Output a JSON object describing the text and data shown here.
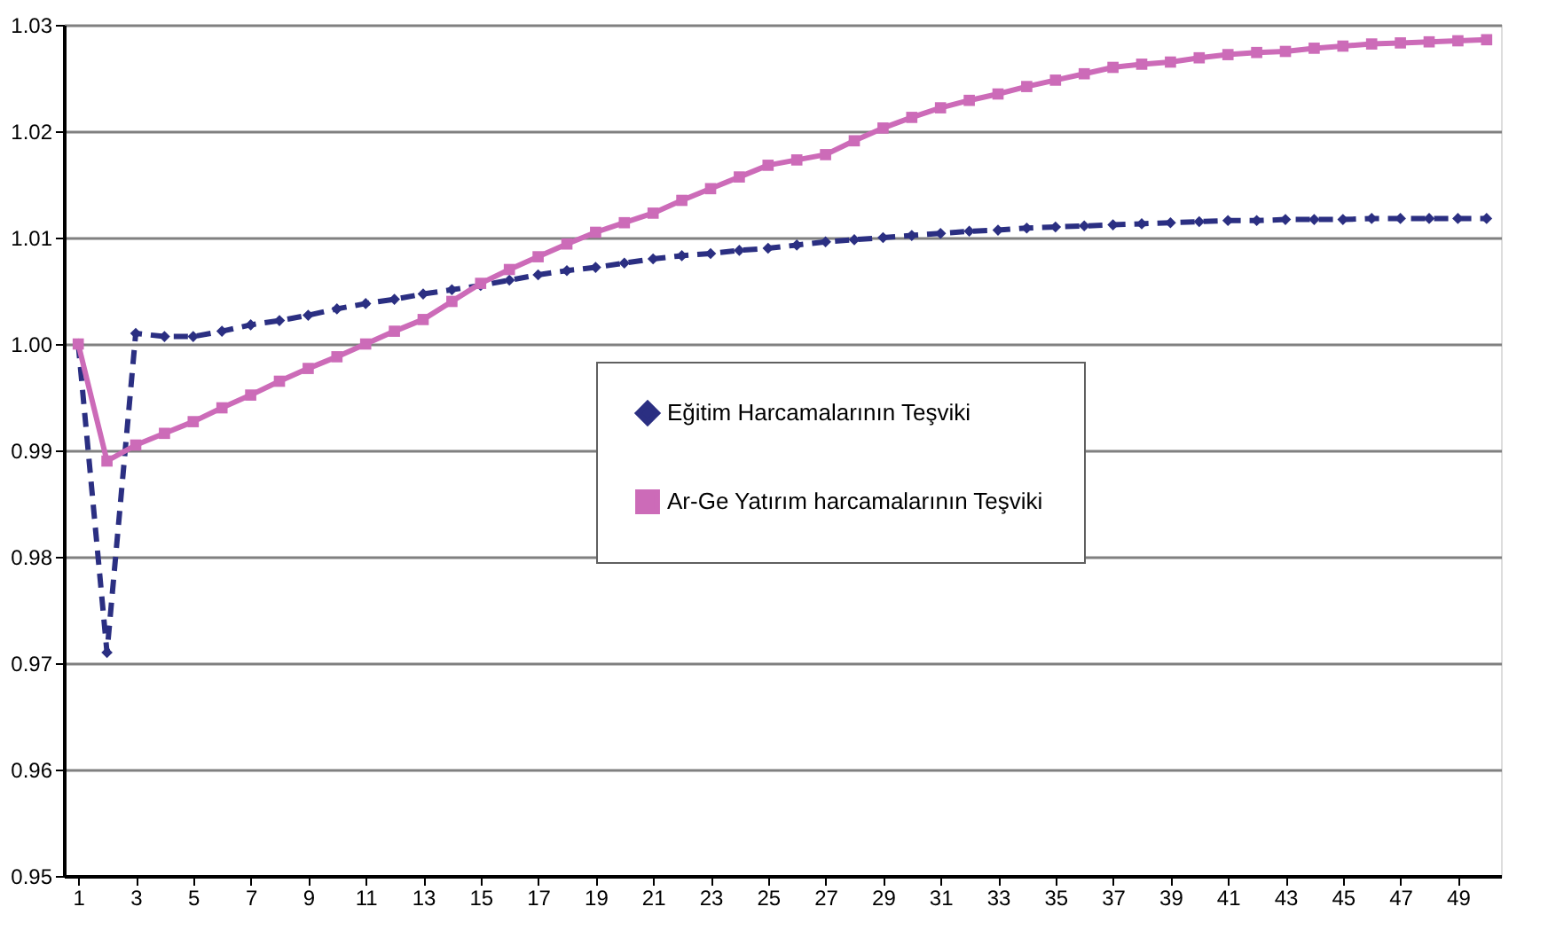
{
  "chart_data": {
    "type": "line",
    "x": [
      1,
      2,
      3,
      4,
      5,
      6,
      7,
      8,
      9,
      10,
      11,
      12,
      13,
      14,
      15,
      16,
      17,
      18,
      19,
      20,
      21,
      22,
      23,
      24,
      25,
      26,
      27,
      28,
      29,
      30,
      31,
      32,
      33,
      34,
      35,
      36,
      37,
      38,
      39,
      40,
      41,
      42,
      43,
      44,
      45,
      46,
      47,
      48,
      49,
      50
    ],
    "series": [
      {
        "name": "Eğitim Harcamalarının Teşviki",
        "color": "#2b2f82",
        "marker": "diamond",
        "line_style": "dashed",
        "values": [
          1.0,
          0.971,
          1.001,
          1.0007,
          1.0007,
          1.0012,
          1.0018,
          1.0022,
          1.0027,
          1.0033,
          1.0038,
          1.0042,
          1.0047,
          1.0051,
          1.0055,
          1.006,
          1.0065,
          1.0069,
          1.0072,
          1.0076,
          1.008,
          1.0083,
          1.0085,
          1.0088,
          1.009,
          1.0093,
          1.0096,
          1.0098,
          1.01,
          1.0102,
          1.0104,
          1.0106,
          1.0107,
          1.0109,
          1.011,
          1.0111,
          1.0112,
          1.0113,
          1.0114,
          1.0115,
          1.0116,
          1.0116,
          1.0117,
          1.0117,
          1.0117,
          1.0118,
          1.0118,
          1.0118,
          1.0118,
          1.0118
        ]
      },
      {
        "name": "Ar-Ge Yatırım harcamalarının Teşviki",
        "color": "#cc6bb8",
        "marker": "square",
        "line_style": "solid",
        "values": [
          1.0,
          0.989,
          0.9905,
          0.9916,
          0.9927,
          0.994,
          0.9952,
          0.9965,
          0.9977,
          0.9988,
          1.0,
          1.0012,
          1.0023,
          1.004,
          1.0057,
          1.007,
          1.0082,
          1.0094,
          1.0105,
          1.0114,
          1.0123,
          1.0135,
          1.0146,
          1.0157,
          1.0168,
          1.0173,
          1.0178,
          1.0191,
          1.0203,
          1.0213,
          1.0222,
          1.0229,
          1.0235,
          1.0242,
          1.0248,
          1.0254,
          1.026,
          1.0263,
          1.0265,
          1.0269,
          1.0272,
          1.0274,
          1.0275,
          1.0278,
          1.028,
          1.0282,
          1.0283,
          1.0284,
          1.0285,
          1.0286
        ]
      }
    ],
    "xlim": [
      0.5,
      50.5
    ],
    "xticks": [
      1,
      3,
      5,
      7,
      9,
      11,
      13,
      15,
      17,
      19,
      21,
      23,
      25,
      27,
      29,
      31,
      33,
      35,
      37,
      39,
      41,
      43,
      45,
      47,
      49
    ],
    "ylim": [
      0.95,
      1.03
    ],
    "yticks": [
      0.95,
      0.96,
      0.97,
      0.98,
      0.99,
      {
        "value": 1.0,
        "label": "1.00"
      },
      1.01,
      1.02,
      1.03
    ],
    "grid": "y",
    "legend": "center"
  }
}
